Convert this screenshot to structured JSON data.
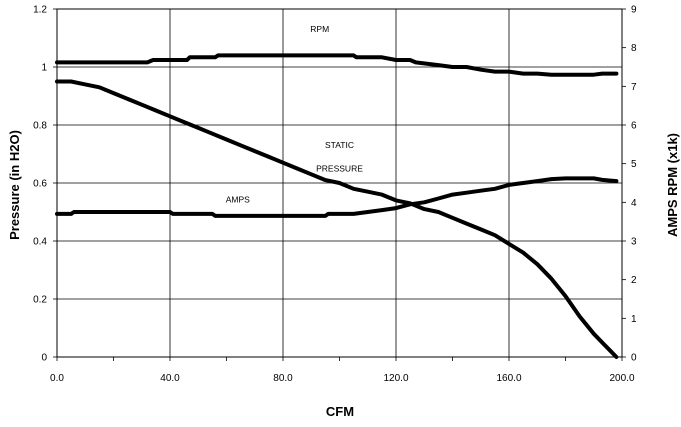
{
  "chart_data": {
    "type": "line",
    "title": "",
    "xlabel": "CFM",
    "ylabel": "Pressure (in H2O)",
    "y2label": "AMPS   RPM (x1k)",
    "xlim": [
      0,
      200
    ],
    "ylim": [
      0,
      1.2
    ],
    "y2lim": [
      0,
      9
    ],
    "x_ticks": [
      "0.0",
      "40.0",
      "80.0",
      "120.0",
      "160.0",
      "200.0"
    ],
    "x_tick_values": [
      0,
      40,
      80,
      120,
      160,
      200
    ],
    "x_minor_ticks": [
      20,
      60,
      100,
      140,
      180
    ],
    "y_ticks": [
      "0",
      "0.2",
      "0.4",
      "0.6",
      "0.8",
      "1",
      "1.2"
    ],
    "y_tick_values": [
      0,
      0.2,
      0.4,
      0.6,
      0.8,
      1.0,
      1.2
    ],
    "y2_ticks": [
      "0",
      "1",
      "2",
      "3",
      "4",
      "5",
      "6",
      "7",
      "8",
      "9"
    ],
    "y2_tick_values": [
      0,
      1,
      2,
      3,
      4,
      5,
      6,
      7,
      8,
      9
    ],
    "grid": true,
    "series": [
      {
        "name": "RPM",
        "axis": "y2",
        "x": [
          0,
          5,
          10,
          20,
          30,
          32,
          34,
          40,
          45,
          46,
          47,
          55,
          56,
          57,
          60,
          65,
          70,
          80,
          90,
          100,
          105,
          106,
          115,
          120,
          125,
          127,
          135,
          140,
          145,
          150,
          155,
          160,
          165,
          170,
          175,
          180,
          185,
          190,
          193,
          198
        ],
        "values": [
          7.62,
          7.62,
          7.62,
          7.62,
          7.62,
          7.62,
          7.68,
          7.68,
          7.68,
          7.68,
          7.75,
          7.75,
          7.75,
          7.8,
          7.8,
          7.8,
          7.8,
          7.8,
          7.8,
          7.8,
          7.8,
          7.75,
          7.75,
          7.68,
          7.68,
          7.62,
          7.55,
          7.5,
          7.5,
          7.43,
          7.38,
          7.38,
          7.33,
          7.33,
          7.3,
          7.3,
          7.3,
          7.3,
          7.33,
          7.33
        ]
      },
      {
        "name": "STATIC PRESSURE",
        "axis": "y",
        "x": [
          0,
          5,
          10,
          15,
          20,
          25,
          30,
          35,
          40,
          45,
          50,
          55,
          60,
          65,
          70,
          75,
          80,
          85,
          90,
          95,
          100,
          105,
          110,
          115,
          120,
          125,
          130,
          135,
          140,
          145,
          150,
          155,
          160,
          165,
          170,
          175,
          180,
          185,
          190,
          193,
          196,
          198
        ],
        "values": [
          0.95,
          0.95,
          0.94,
          0.93,
          0.91,
          0.89,
          0.87,
          0.85,
          0.83,
          0.81,
          0.79,
          0.77,
          0.75,
          0.73,
          0.71,
          0.69,
          0.67,
          0.65,
          0.63,
          0.61,
          0.6,
          0.58,
          0.57,
          0.56,
          0.54,
          0.53,
          0.51,
          0.5,
          0.48,
          0.46,
          0.44,
          0.42,
          0.39,
          0.36,
          0.32,
          0.27,
          0.21,
          0.14,
          0.08,
          0.05,
          0.02,
          0.0
        ]
      },
      {
        "name": "AMPS",
        "axis": "y2",
        "x": [
          0,
          5,
          6,
          20,
          40,
          41,
          55,
          56,
          70,
          85,
          95,
          96,
          105,
          110,
          115,
          120,
          125,
          130,
          135,
          140,
          145,
          150,
          155,
          160,
          165,
          170,
          175,
          180,
          185,
          190,
          193,
          198
        ],
        "values": [
          3.7,
          3.7,
          3.75,
          3.75,
          3.75,
          3.7,
          3.7,
          3.65,
          3.65,
          3.65,
          3.65,
          3.7,
          3.7,
          3.75,
          3.8,
          3.85,
          3.95,
          4.0,
          4.1,
          4.2,
          4.25,
          4.3,
          4.35,
          4.45,
          4.5,
          4.55,
          4.6,
          4.62,
          4.62,
          4.62,
          4.58,
          4.55
        ]
      }
    ],
    "annotations": [
      {
        "text": "RPM",
        "x": 93,
        "y2": 8.4
      },
      {
        "text": "STATIC",
        "x": 100,
        "y2": 5.4
      },
      {
        "text": "PRESSURE",
        "x": 100,
        "y2": 4.8
      },
      {
        "text": "AMPS",
        "x": 64,
        "y2": 4.0
      }
    ]
  }
}
